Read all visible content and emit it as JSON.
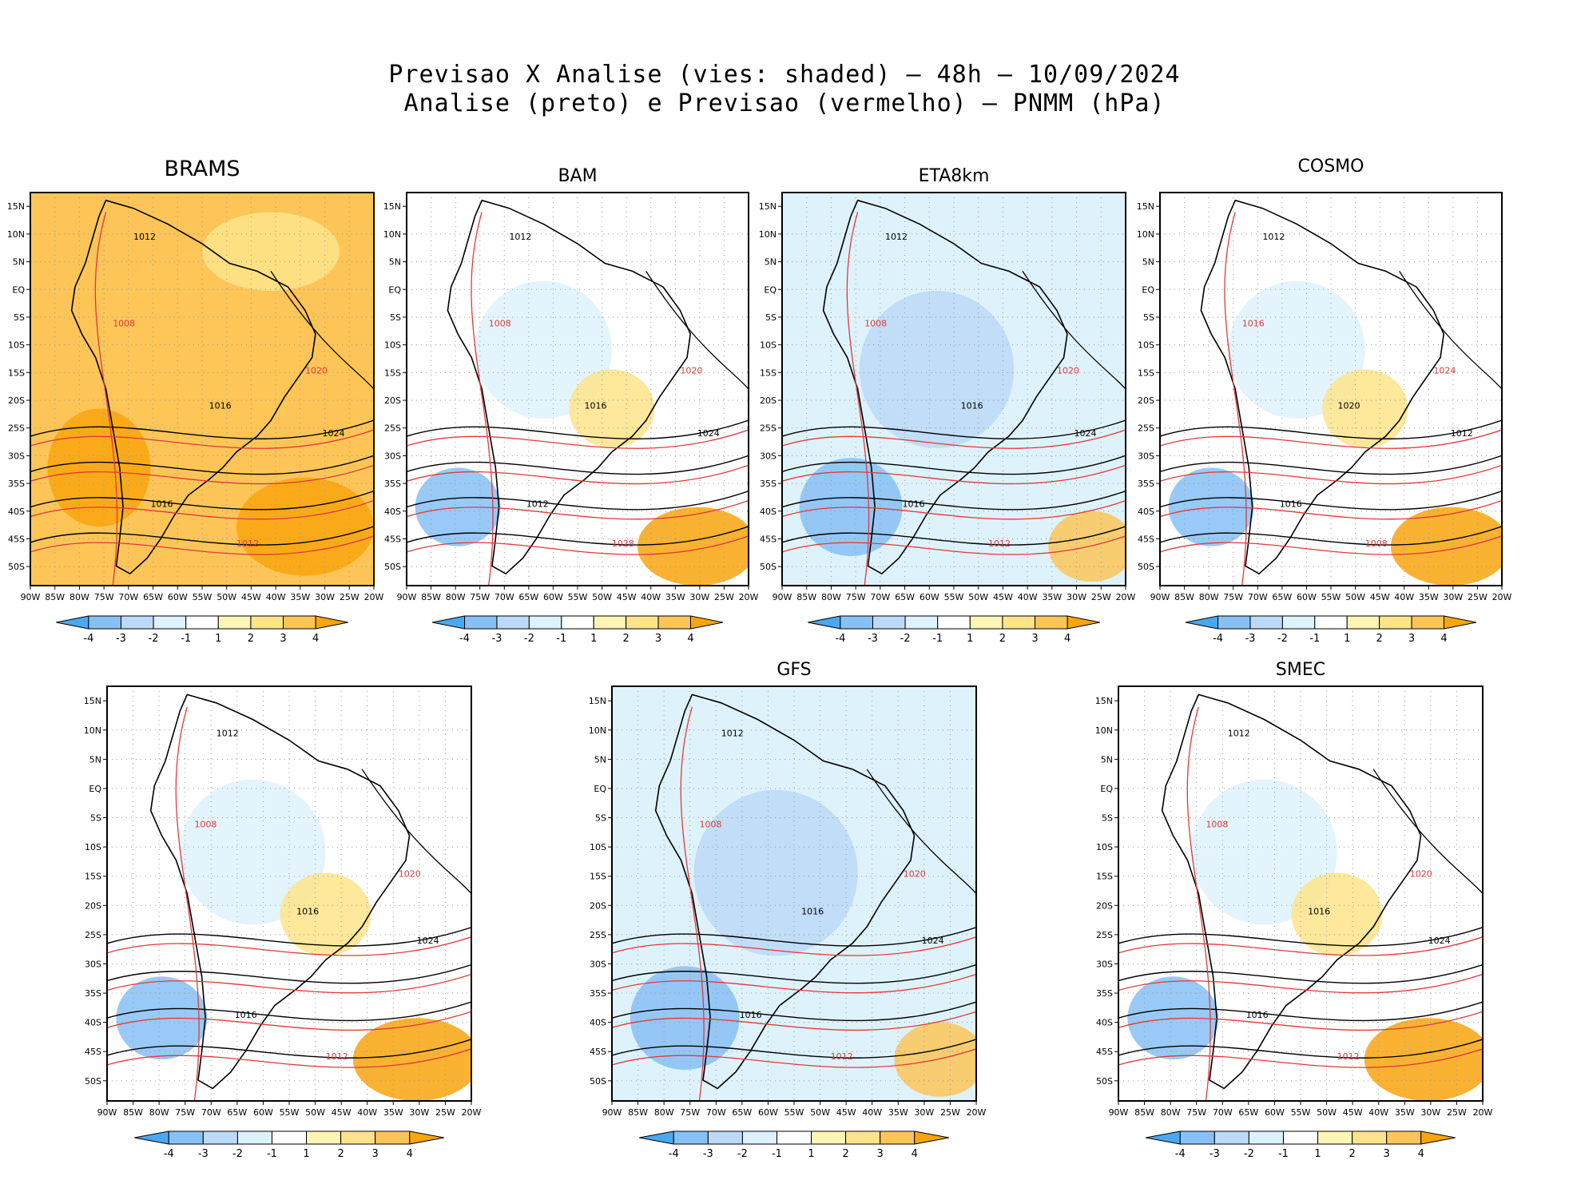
{
  "header": {
    "line1": "Previsao X Analise (vies: shaded) – 48h – 10/09/2024",
    "line2": "Analise (preto) e Previsao (vermelho) – PNMM (hPa)"
  },
  "lat_labels": [
    "15N",
    "10N",
    "5N",
    "EQ",
    "5S",
    "10S",
    "15S",
    "20S",
    "25S",
    "30S",
    "35S",
    "40S",
    "45S",
    "50S"
  ],
  "lon_labels": [
    "90W",
    "85W",
    "80W",
    "75W",
    "70W",
    "65W",
    "60W",
    "55W",
    "50W",
    "45W",
    "40W",
    "35W",
    "30W",
    "25W",
    "20W"
  ],
  "colorbar": {
    "ticks": [
      "-4",
      "-3",
      "-2",
      "-1",
      "1",
      "2",
      "3",
      "4"
    ],
    "colors": [
      "#4aa8f0",
      "#87c0f5",
      "#bcd9f7",
      "#def2fb",
      "#ffffff",
      "#fdf5b3",
      "#fde48a",
      "#fdc557",
      "#f9a50e"
    ]
  },
  "panels": [
    {
      "name": "BRAMS",
      "bias": "warm",
      "isobars": [
        "1012",
        "1008",
        "1016",
        "1020",
        "1024",
        "1012",
        "1016"
      ]
    },
    {
      "name": "BAM",
      "bias": "mixed",
      "isobars": [
        "1012",
        "1008",
        "1016",
        "1020",
        "1024",
        "1028",
        "1012"
      ]
    },
    {
      "name": "ETA8km",
      "bias": "cold",
      "isobars": [
        "1012",
        "1008",
        "1016",
        "1020",
        "1024",
        "1012",
        "1016"
      ]
    },
    {
      "name": "COSMO",
      "bias": "mixed",
      "isobars": [
        "1012",
        "1016",
        "1020",
        "1024",
        "1012",
        "1008",
        "1016"
      ]
    },
    {
      "name": "",
      "bias": "mixed",
      "isobars": [
        "1012",
        "1008",
        "1016",
        "1020",
        "1024",
        "1012",
        "1016"
      ]
    },
    {
      "name": "GFS",
      "bias": "cold",
      "isobars": [
        "1012",
        "1008",
        "1016",
        "1020",
        "1024",
        "1012",
        "1016"
      ]
    },
    {
      "name": "SMEC",
      "bias": "mixed",
      "isobars": [
        "1012",
        "1008",
        "1016",
        "1020",
        "1024",
        "1012",
        "1016"
      ]
    }
  ]
}
